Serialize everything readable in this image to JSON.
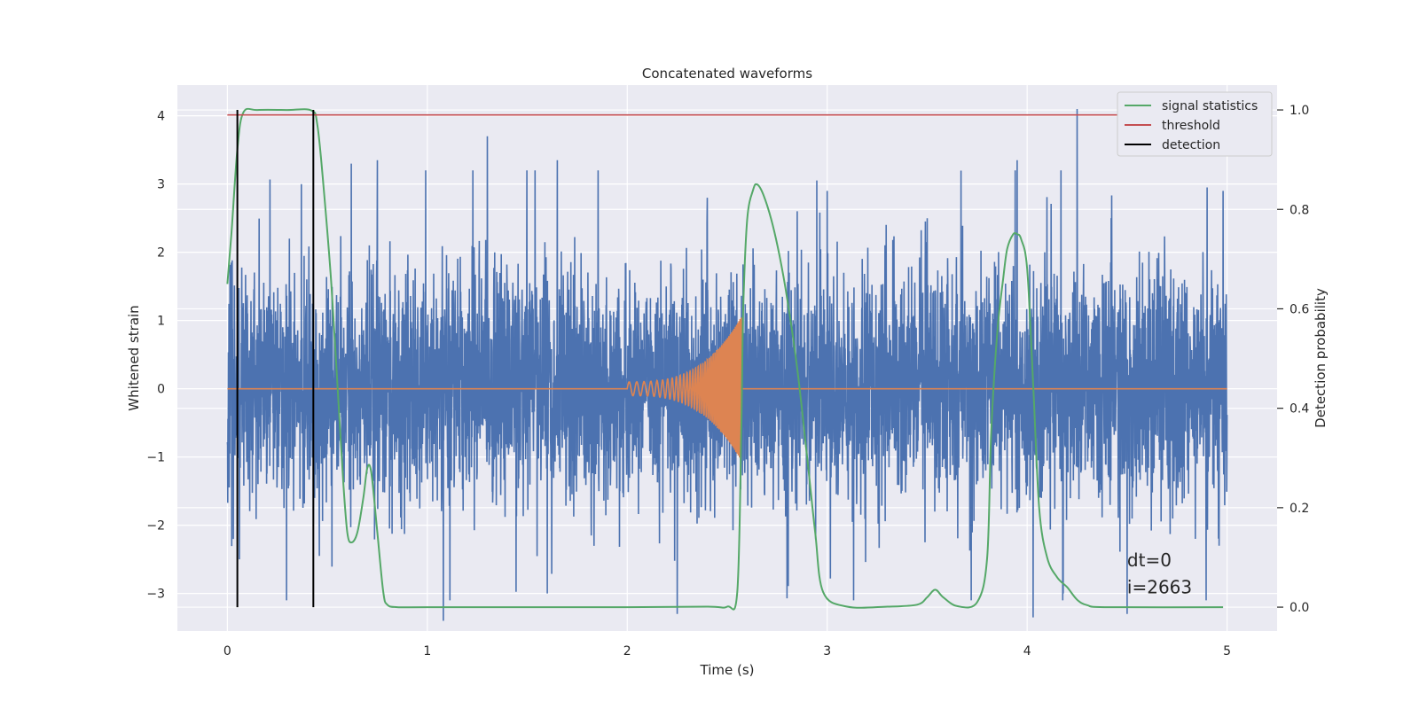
{
  "chart_data": {
    "type": "line",
    "title": "Concatenated waveforms",
    "xlabel": "Time (s)",
    "ylabel": "Whitened strain",
    "y2label": "Detection probability",
    "xlim": [
      -0.25,
      5.25
    ],
    "ylim": [
      -3.55,
      4.45
    ],
    "y2lim": [
      -0.048,
      1.05
    ],
    "xticks": [
      0,
      1,
      2,
      3,
      4,
      5
    ],
    "xtick_labels": [
      "0",
      "1",
      "2",
      "3",
      "4",
      "5"
    ],
    "yticks": [
      -3,
      -2,
      -1,
      0,
      1,
      2,
      3,
      4
    ],
    "ytick_labels": [
      "−3",
      "−2",
      "−1",
      "0",
      "1",
      "2",
      "3",
      "4"
    ],
    "y2ticks": [
      0.0,
      0.2,
      0.4,
      0.6,
      0.8,
      1.0
    ],
    "y2tick_labels": [
      "0.0",
      "0.2",
      "0.4",
      "0.6",
      "0.8",
      "1.0"
    ],
    "grid": true,
    "legend_position": "upper-right",
    "colors": {
      "whitened_strain": "#4c72b0",
      "template": "#dd8452",
      "signal_statistics": "#55a868",
      "threshold": "#c44e52",
      "detection": "#000000",
      "background": "#eaeaf2",
      "grid": "#ffffff"
    },
    "series": [
      {
        "name": "",
        "axis": "left",
        "style": "dense noise trace",
        "x_range": [
          0,
          5
        ],
        "typical_amplitude": 1.0,
        "peaks": [
          {
            "x": 0.02,
            "y": 1.85
          },
          {
            "x": 0.03,
            "y": -2.2
          },
          {
            "x": 0.06,
            "y": -2.5
          },
          {
            "x": 0.31,
            "y": 2.2
          },
          {
            "x": 0.37,
            "y": 3.0
          },
          {
            "x": 0.46,
            "y": -2.45
          },
          {
            "x": 0.62,
            "y": 3.3
          },
          {
            "x": 0.71,
            "y": 2.1
          },
          {
            "x": 0.75,
            "y": 3.35
          },
          {
            "x": 1.08,
            "y": -3.4
          },
          {
            "x": 1.3,
            "y": 3.7
          },
          {
            "x": 1.65,
            "y": 3.35
          },
          {
            "x": 1.6,
            "y": -3.0
          },
          {
            "x": 2.25,
            "y": -3.3
          },
          {
            "x": 2.4,
            "y": 2.8
          },
          {
            "x": 2.85,
            "y": 2.6
          },
          {
            "x": 3.0,
            "y": 2.9
          },
          {
            "x": 3.5,
            "y": 2.5
          },
          {
            "x": 3.95,
            "y": 3.35
          },
          {
            "x": 4.03,
            "y": -3.35
          },
          {
            "x": 4.18,
            "y": -3.0
          },
          {
            "x": 4.25,
            "y": 4.1
          },
          {
            "x": 4.5,
            "y": -3.3
          },
          {
            "x": 4.9,
            "y": 2.95
          },
          {
            "x": 4.98,
            "y": 2.9
          },
          {
            "x": 4.96,
            "y": -2.3
          }
        ]
      },
      {
        "name": "",
        "axis": "left",
        "style": "chirp",
        "x_range": [
          0,
          5
        ],
        "chirp_start": 2.0,
        "chirp_end": 2.57,
        "amplitude_start": 0.1,
        "amplitude_end": 1.05,
        "frequency_start": 26,
        "frequency_end": 180
      },
      {
        "name": "signal statistics",
        "axis": "right",
        "x": [
          0.0,
          0.02,
          0.05,
          0.08,
          0.15,
          0.3,
          0.42,
          0.45,
          0.48,
          0.52,
          0.55,
          0.58,
          0.6,
          0.62,
          0.65,
          0.68,
          0.7,
          0.72,
          0.75,
          0.78,
          0.8,
          0.85,
          1.0,
          1.5,
          2.0,
          2.4,
          2.5,
          2.55,
          2.57,
          2.58,
          2.6,
          2.63,
          2.65,
          2.68,
          2.72,
          2.76,
          2.8,
          2.85,
          2.9,
          2.94,
          2.98,
          3.1,
          3.3,
          3.45,
          3.5,
          3.54,
          3.58,
          3.65,
          3.75,
          3.8,
          3.82,
          3.85,
          3.88,
          3.9,
          3.93,
          3.95,
          3.97,
          4.0,
          4.03,
          4.06,
          4.1,
          4.15,
          4.2,
          4.25,
          4.3,
          4.4,
          4.98
        ],
        "values": [
          0.65,
          0.75,
          0.92,
          0.995,
          1.0,
          1.0,
          0.999,
          0.97,
          0.85,
          0.65,
          0.45,
          0.25,
          0.15,
          0.13,
          0.15,
          0.22,
          0.28,
          0.27,
          0.15,
          0.03,
          0.005,
          0.0,
          0.0,
          0.0,
          0.0,
          0.001,
          0.001,
          0.03,
          0.35,
          0.6,
          0.78,
          0.84,
          0.85,
          0.83,
          0.78,
          0.71,
          0.62,
          0.48,
          0.3,
          0.15,
          0.03,
          0.001,
          0.001,
          0.005,
          0.02,
          0.035,
          0.02,
          0.002,
          0.01,
          0.1,
          0.35,
          0.55,
          0.66,
          0.72,
          0.75,
          0.75,
          0.74,
          0.68,
          0.45,
          0.2,
          0.1,
          0.06,
          0.04,
          0.015,
          0.004,
          0.0,
          0.0
        ]
      },
      {
        "name": "threshold",
        "axis": "right",
        "x": [
          0,
          5
        ],
        "values": [
          0.99,
          0.99
        ]
      }
    ],
    "detections": {
      "name": "detection",
      "x": [
        0.05,
        0.43
      ],
      "y2_range": [
        0.0,
        1.0
      ]
    },
    "legend": [
      "signal statistics",
      "threshold",
      "detection"
    ],
    "annotations": [
      {
        "text": "dt=0",
        "x": 4.5,
        "y": -2.6
      },
      {
        "text": "i=2663",
        "x": 4.5,
        "y": -3.0
      }
    ]
  }
}
